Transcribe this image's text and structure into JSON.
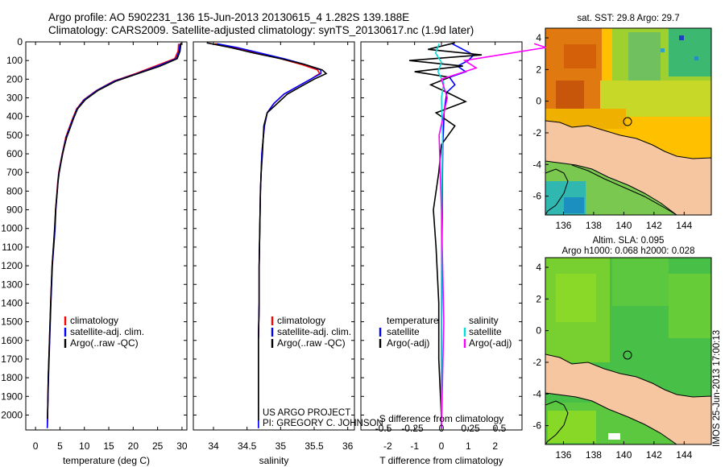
{
  "header": {
    "line1": "Argo profile: AO 5902231_136 15-Jun-2013 20130615_4 1.282S 139.188E",
    "line2": "Climatology: CARS2009. Satellite-adjusted climatology: synTS_20130617.nc (1.9d later)"
  },
  "chart_data": [
    {
      "type": "line",
      "id": "temperature",
      "xlabel": "temperature (deg C)",
      "ylabel": "",
      "xlim": [
        -2,
        31
      ],
      "ylim": [
        2080,
        0
      ],
      "xticks": [
        "0",
        "5",
        "10",
        "15",
        "20",
        "25",
        "30"
      ],
      "yticks": [
        "0",
        "100",
        "200",
        "300",
        "400",
        "500",
        "600",
        "700",
        "800",
        "900",
        "1000",
        "1100",
        "1200",
        "1300",
        "1400",
        "1500",
        "1600",
        "1700",
        "1800",
        "1900",
        "2000"
      ],
      "legend": [
        "climatology",
        "satellite-adj. clim.",
        "Argo(..raw -QC)"
      ],
      "series": [
        {
          "name": "climatology",
          "color": "#ff0000",
          "x": [
            29.3,
            29.2,
            28.5,
            24.5,
            20.5,
            16,
            12.5,
            9.9,
            8.4,
            7.6,
            6.9,
            6.2,
            5.8,
            5.45,
            5.1,
            4.75,
            4.55,
            4.4,
            4.1,
            3.95,
            3.4,
            3.1,
            2.85,
            2.6,
            2.5,
            2.45,
            2.4
          ],
          "y": [
            10,
            50,
            90,
            130,
            170,
            210,
            260,
            310,
            360,
            410,
            460,
            510,
            560,
            600,
            650,
            700,
            750,
            800,
            900,
            1000,
            1200,
            1400,
            1600,
            1800,
            1950,
            2020,
            2070
          ]
        },
        {
          "name": "satellite-adj. clim.",
          "color": "#0000ff",
          "x": [
            29.6,
            29.4,
            28.8,
            25,
            20.8,
            16.2,
            12.6,
            10,
            8.5,
            7.7,
            7,
            6.3,
            5.85,
            5.5,
            5.15,
            4.8,
            4.6,
            4.45,
            4.15,
            4,
            3.45,
            3.15,
            2.9,
            2.65,
            2.5,
            2.45,
            2.4
          ],
          "y": [
            10,
            50,
            90,
            130,
            170,
            210,
            260,
            310,
            360,
            410,
            460,
            510,
            560,
            600,
            650,
            700,
            750,
            800,
            900,
            1000,
            1200,
            1400,
            1600,
            1800,
            1950,
            2020,
            2070
          ]
        },
        {
          "name": "Argo(..raw -QC)",
          "color": "#000000",
          "x": [
            29.8,
            29.6,
            29,
            25.5,
            21,
            16.5,
            12.8,
            10.2,
            8.6,
            7.8,
            7.1,
            6.4,
            5.9,
            5.55,
            5.2,
            4.85,
            4.6,
            4.45,
            4.1,
            3.9,
            3.4,
            3.1,
            2.85,
            2.6,
            2.5,
            2.45
          ],
          "y": [
            5,
            50,
            90,
            130,
            170,
            210,
            260,
            310,
            360,
            410,
            460,
            510,
            560,
            600,
            650,
            700,
            750,
            800,
            900,
            1000,
            1200,
            1400,
            1600,
            1800,
            1950,
            2020
          ]
        }
      ]
    },
    {
      "type": "line",
      "id": "salinity",
      "xlabel": "salinity",
      "xlim": [
        33.7,
        36.1
      ],
      "ylim": [
        2080,
        0
      ],
      "xticks": [
        "34",
        "34.5",
        "35",
        "35.5",
        "36"
      ],
      "legend": [
        "climatology",
        "satellite-adj. clim.",
        "Argo(..raw -QC)"
      ],
      "series": [
        {
          "name": "climatology",
          "color": "#ff0000",
          "x": [
            34.02,
            34.3,
            34.65,
            35,
            35.3,
            35.55,
            35.58,
            35.45,
            35.25,
            35.05,
            34.9,
            34.8,
            34.76,
            34.74,
            34.72,
            34.71,
            34.7,
            34.69,
            34.68,
            34.68,
            34.67,
            34.67,
            34.67
          ],
          "y": [
            10,
            30,
            60,
            90,
            120,
            150,
            170,
            200,
            240,
            280,
            330,
            380,
            450,
            520,
            600,
            700,
            800,
            1000,
            1200,
            1400,
            1600,
            1800,
            2070
          ]
        },
        {
          "name": "satellite-adj. clim.",
          "color": "#0000ff",
          "x": [
            34.05,
            34.35,
            34.7,
            35.05,
            35.35,
            35.6,
            35.6,
            35.45,
            35.25,
            35.05,
            34.9,
            34.8,
            34.76,
            34.74,
            34.72,
            34.71,
            34.7,
            34.69,
            34.68,
            34.68,
            34.67,
            34.67,
            34.67
          ],
          "y": [
            10,
            30,
            60,
            90,
            120,
            150,
            170,
            200,
            240,
            280,
            330,
            380,
            450,
            520,
            600,
            700,
            800,
            1000,
            1200,
            1400,
            1600,
            1800,
            2070
          ]
        },
        {
          "name": "Argo(..raw -QC)",
          "color": "#000000",
          "x": [
            33.9,
            34.25,
            34.6,
            35.0,
            35.35,
            35.62,
            35.68,
            35.5,
            35.3,
            35.1,
            34.95,
            34.8,
            34.75,
            34.74,
            34.73,
            34.71,
            34.7,
            34.69,
            34.68,
            34.68,
            34.67,
            34.67,
            34.67
          ],
          "y": [
            5,
            30,
            60,
            90,
            120,
            150,
            170,
            200,
            240,
            280,
            330,
            380,
            450,
            520,
            600,
            700,
            800,
            1000,
            1200,
            1400,
            1600,
            1800,
            2030
          ]
        }
      ],
      "annotations": [
        "US ARGO PROJECT",
        "PI: GREGORY C. JOHNSON"
      ]
    },
    {
      "type": "line",
      "id": "differences",
      "xlabel": "T difference from climatology",
      "xlabel_top": "S difference from climatology",
      "xlim_T": [
        -3,
        3
      ],
      "xticks_T": [
        "-2",
        "-1",
        "0",
        "1",
        "2"
      ],
      "xticks_S": [
        "-0.5",
        "-0.25",
        "0",
        "0.25",
        "0.5"
      ],
      "ylim": [
        2080,
        0
      ],
      "legend_temperature": {
        "title": "temperature",
        "items": [
          "satellite",
          "Argo(-adj)"
        ]
      },
      "legend_salinity": {
        "title": "salinity",
        "items": [
          "satellite",
          "Argo(-adj)"
        ]
      },
      "series": [
        {
          "name": "T satellite",
          "color": "#0000ff",
          "x": [
            0.4,
            0.8,
            1.2,
            1.0,
            0.6,
            0.9,
            0.3,
            0.5,
            0.2,
            0.15,
            0.1,
            0.08,
            0.05,
            0.04,
            0.03,
            0.02,
            0.01,
            0.0,
            0.0
          ],
          "y": [
            10,
            40,
            70,
            100,
            130,
            160,
            190,
            230,
            270,
            320,
            380,
            450,
            550,
            700,
            900,
            1100,
            1400,
            1700,
            2070
          ]
        },
        {
          "name": "T Argo(-adj)",
          "color": "#000000",
          "x": [
            0.5,
            -0.5,
            1.5,
            -1.2,
            0.8,
            -1.0,
            0.3,
            -0.4,
            0.2,
            0.9,
            -0.2,
            0.5,
            0.0,
            -0.1,
            -0.3,
            -0.2,
            -0.1,
            -0.1,
            0.0
          ],
          "y": [
            5,
            40,
            70,
            100,
            130,
            160,
            190,
            230,
            270,
            320,
            380,
            450,
            550,
            700,
            900,
            1100,
            1400,
            1700,
            2020
          ]
        },
        {
          "name": "S satellite",
          "color": "#00dddd",
          "x": [
            -0.02,
            -0.05,
            0.0,
            -0.03,
            0.02,
            0.0,
            0.01,
            0.0,
            0.0
          ],
          "y": [
            10,
            60,
            110,
            160,
            220,
            300,
            500,
            1000,
            2070
          ]
        },
        {
          "name": "S Argo(-adj)",
          "color": "#ff00ff",
          "x": [
            0.8,
            0.9,
            0.6,
            0.2,
            0.3,
            0.0,
            0.05,
            -0.02,
            0.0,
            0.02,
            0.0
          ],
          "y": [
            10,
            30,
            60,
            100,
            140,
            200,
            300,
            500,
            900,
            1500,
            2070
          ]
        }
      ]
    },
    {
      "type": "heatmap",
      "id": "sst-map",
      "title": "sat. SST: 29.8 Argo: 29.7",
      "xticks": [
        "136",
        "138",
        "140",
        "142",
        "144"
      ],
      "yticks": [
        "4",
        "2",
        "0",
        "-2",
        "-4",
        "-6"
      ]
    },
    {
      "type": "heatmap",
      "id": "sla-map",
      "title": "Altim. SLA: 0.095",
      "subtitle": "Argo h1000: 0.068 h2000: 0.028",
      "xticks": [
        "136",
        "138",
        "140",
        "142",
        "144"
      ],
      "yticks": [
        "4",
        "2",
        "0",
        "-2",
        "-4",
        "-6"
      ]
    }
  ],
  "footer": {
    "stamp": "IMOS 25-Jun-2013 17:00:13"
  }
}
